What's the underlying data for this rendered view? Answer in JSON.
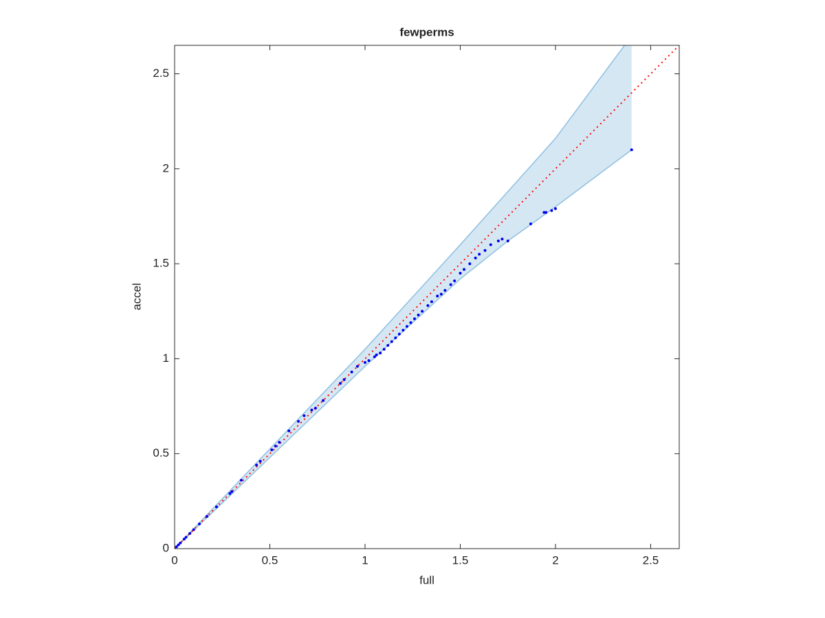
{
  "chart_data": {
    "type": "scatter",
    "title": "fewperms",
    "x_label": "full",
    "y_label": "accel",
    "xlim": [
      0,
      2.65
    ],
    "ylim": [
      0,
      2.65
    ],
    "xticks": [
      0,
      0.5,
      1,
      1.5,
      2,
      2.5
    ],
    "yticks": [
      0,
      0.5,
      1,
      1.5,
      2,
      2.5
    ],
    "grid": false,
    "band": {
      "color": "#d6e7f4",
      "edge_color": "#8dbfdf",
      "x": [
        0,
        1,
        1.5,
        1.75,
        2,
        2.4
      ],
      "upper": [
        0,
        1.05,
        1.6,
        1.88,
        2.16,
        2.7
      ],
      "lower": [
        0,
        0.96,
        1.42,
        1.62,
        1.8,
        2.1
      ]
    },
    "reference_line": {
      "color": "#ff0000",
      "x": [
        0,
        2.65
      ],
      "y": [
        0,
        2.65
      ]
    },
    "series": [
      {
        "color": "#0000ee",
        "x": [
          0.01,
          0.02,
          0.03,
          0.05,
          0.06,
          0.08,
          0.1,
          0.13,
          0.17,
          0.22,
          0.29,
          0.3,
          0.35,
          0.43,
          0.45,
          0.51,
          0.53,
          0.55,
          0.6,
          0.65,
          0.68,
          0.72,
          0.74,
          0.78,
          0.87,
          0.89,
          0.93,
          0.96,
          1.0,
          1.02,
          1.05,
          1.06,
          1.08,
          1.1,
          1.12,
          1.14,
          1.16,
          1.18,
          1.2,
          1.22,
          1.24,
          1.26,
          1.28,
          1.3,
          1.33,
          1.35,
          1.38,
          1.4,
          1.42,
          1.45,
          1.47,
          1.5,
          1.52,
          1.55,
          1.58,
          1.6,
          1.63,
          1.66,
          1.7,
          1.72,
          1.75,
          1.87,
          1.94,
          1.95,
          1.98,
          2.0,
          2.4
        ],
        "values": [
          0.01,
          0.02,
          0.03,
          0.05,
          0.06,
          0.08,
          0.1,
          0.13,
          0.17,
          0.22,
          0.29,
          0.3,
          0.36,
          0.44,
          0.46,
          0.52,
          0.54,
          0.56,
          0.62,
          0.67,
          0.7,
          0.73,
          0.74,
          0.78,
          0.87,
          0.89,
          0.93,
          0.96,
          0.98,
          0.99,
          1.01,
          1.02,
          1.03,
          1.05,
          1.07,
          1.09,
          1.11,
          1.13,
          1.15,
          1.17,
          1.19,
          1.21,
          1.23,
          1.25,
          1.28,
          1.3,
          1.33,
          1.34,
          1.36,
          1.39,
          1.41,
          1.45,
          1.47,
          1.5,
          1.53,
          1.55,
          1.57,
          1.6,
          1.62,
          1.63,
          1.62,
          1.71,
          1.77,
          1.77,
          1.78,
          1.79,
          2.1
        ]
      }
    ]
  }
}
